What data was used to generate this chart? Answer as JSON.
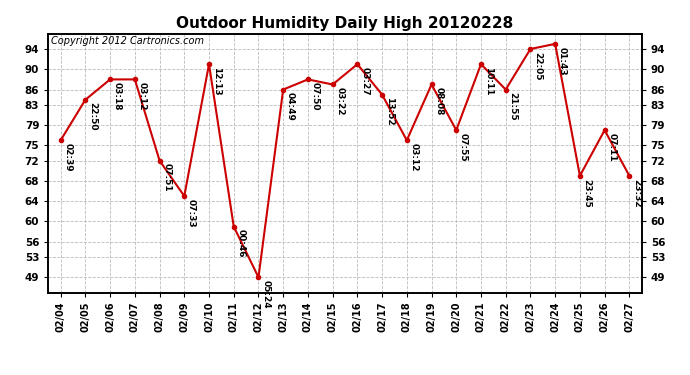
{
  "title": "Outdoor Humidity Daily High 20120228",
  "copyright": "Copyright 2012 Cartronics.com",
  "dates": [
    "02/04",
    "02/05",
    "02/06",
    "02/07",
    "02/08",
    "02/09",
    "02/10",
    "02/11",
    "02/12",
    "02/13",
    "02/14",
    "02/15",
    "02/16",
    "02/17",
    "02/18",
    "02/19",
    "02/20",
    "02/21",
    "02/22",
    "02/23",
    "02/24",
    "02/25",
    "02/26",
    "02/27"
  ],
  "values": [
    76,
    84,
    88,
    88,
    72,
    65,
    91,
    59,
    49,
    86,
    88,
    87,
    91,
    85,
    76,
    87,
    78,
    91,
    86,
    94,
    95,
    69,
    78,
    69
  ],
  "labels": [
    "02:39",
    "22:50",
    "03:18",
    "03:12",
    "07:51",
    "07:33",
    "12:13",
    "00:46",
    "05:24",
    "04:49",
    "07:50",
    "03:22",
    "03:27",
    "13:52",
    "03:12",
    "08:08",
    "07:55",
    "10:11",
    "21:55",
    "22:05",
    "01:43",
    "23:45",
    "07:11",
    "23:32"
  ],
  "line_color": "#cc0000",
  "marker_color": "#cc0000",
  "bg_color": "#ffffff",
  "grid_color": "#bbbbbb",
  "title_fontsize": 11,
  "label_fontsize": 6.5,
  "copyright_fontsize": 7,
  "ylim": [
    46,
    97
  ],
  "yticks": [
    49,
    53,
    56,
    60,
    64,
    68,
    72,
    75,
    79,
    83,
    86,
    90,
    94
  ],
  "tick_fontsize": 7.5,
  "xtick_fontsize": 7
}
